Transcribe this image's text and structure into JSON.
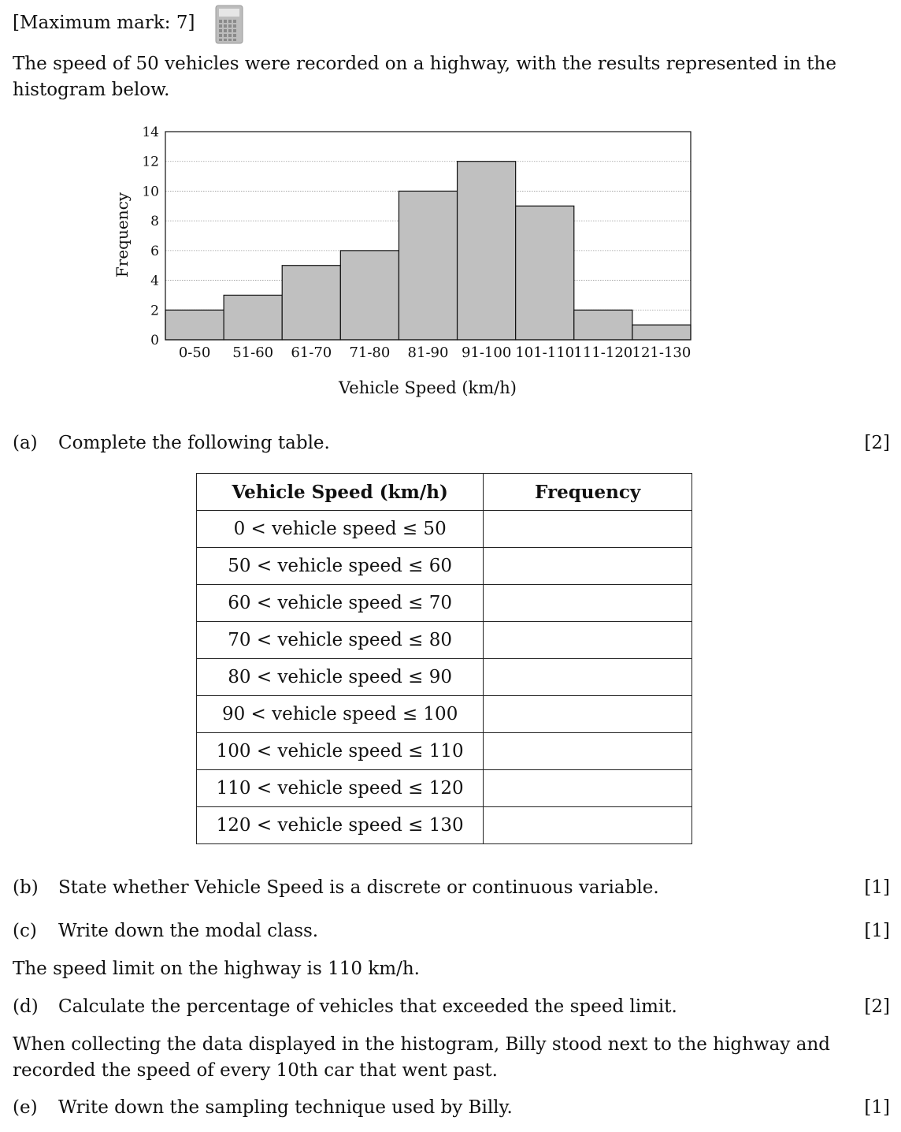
{
  "header": {
    "max_mark": "[Maximum mark: 7]",
    "calculator_icon": "calculator-icon"
  },
  "intro": {
    "line1": "The speed of 50 vehicles were recorded on a highway, with the results represented in the",
    "line2": "histogram below."
  },
  "chart_data": {
    "type": "bar",
    "categories": [
      "0-50",
      "51-60",
      "61-70",
      "71-80",
      "81-90",
      "91-100",
      "101-110",
      "111-120",
      "121-130"
    ],
    "values": [
      2,
      3,
      5,
      6,
      10,
      12,
      9,
      2,
      1
    ],
    "xlabel": "Vehicle Speed (km/h)",
    "ylabel": "Frequency",
    "ylim": [
      0,
      14
    ],
    "yticks": [
      0,
      2,
      4,
      6,
      8,
      10,
      12,
      14
    ],
    "grid": true,
    "bar_color": "#c0c0c0"
  },
  "part_a": {
    "letter": "(a)",
    "text": "Complete the following table.",
    "marks": "[2]",
    "table": {
      "headers": [
        "Vehicle Speed (km/h)",
        "Frequency"
      ],
      "rows": [
        "0 < vehicle speed ≤ 50",
        "50 < vehicle speed ≤ 60",
        "60 < vehicle speed ≤ 70",
        "70 < vehicle speed ≤ 80",
        "80 < vehicle speed ≤ 90",
        "90 < vehicle speed ≤ 100",
        "100 < vehicle speed ≤ 110",
        "110 < vehicle speed ≤ 120",
        "120 < vehicle speed ≤ 130"
      ]
    }
  },
  "part_b": {
    "letter": "(b)",
    "text": "State whether Vehicle Speed is a discrete or continuous variable.",
    "marks": "[1]"
  },
  "part_c": {
    "letter": "(c)",
    "text": "Write down the modal class.",
    "marks": "[1]"
  },
  "speed_limit": "The speed limit on the highway is 110 km/h.",
  "part_d": {
    "letter": "(d)",
    "text": "Calculate the percentage of vehicles that exceeded the speed limit.",
    "marks": "[2]"
  },
  "context": {
    "line1": "When collecting the data displayed in the histogram, Billy stood next to the highway and",
    "line2": "recorded the speed of every 10th car that went past."
  },
  "part_e": {
    "letter": "(e)",
    "text": "Write down the sampling technique used by Billy.",
    "marks": "[1]"
  }
}
